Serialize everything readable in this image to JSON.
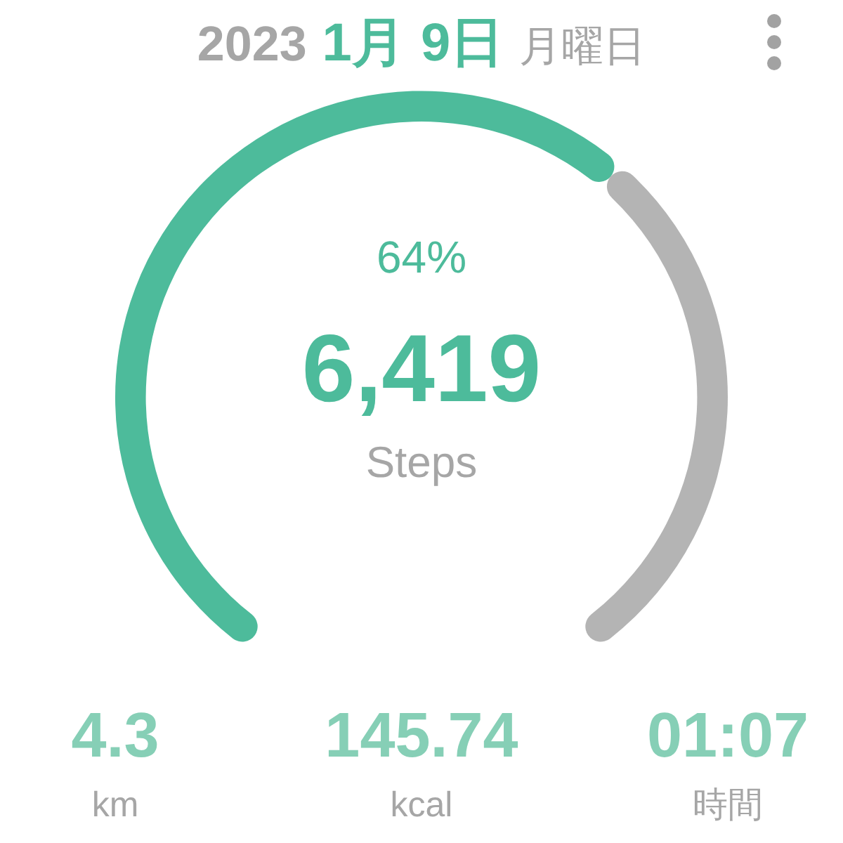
{
  "chart_data": {
    "type": "donut",
    "title": "2023 1月 9日 月曜日",
    "categories": [
      null,
      null
    ],
    "values": [
      64,
      36
    ],
    "colors": [
      "#4dbb9b",
      "#b4b4b4"
    ],
    "annotations": [
      "64%",
      "6,419",
      "Steps",
      "4.3",
      "km",
      "145.74",
      "kcal",
      "01:07",
      "時間"
    ]
  }
}
